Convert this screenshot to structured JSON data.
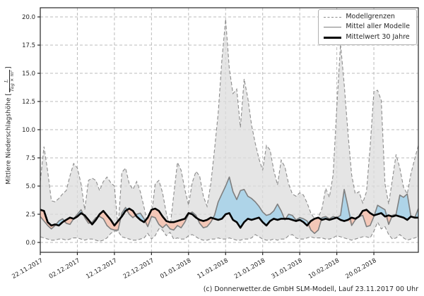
{
  "chart_data": {
    "type": "line",
    "title": "",
    "footer": "(c) Donnerwetter.de GmbH SLM-Modell, Lauf 23.11.2017 00 Uhr",
    "ylabel": "Mittlere Niederschlagshöhe [L/(Tag × m²)]",
    "ylabel_parts": {
      "prefix": "Mittlere Niederschlagshöhe [",
      "fraction_numerator": "L",
      "fraction_denominator": "Tag × m²",
      "suffix": "]"
    },
    "x_unit": "Tage (täglich ab 22.11.2017)",
    "x_total_days": 102,
    "x_tick_days": [
      0,
      10,
      20,
      30,
      40,
      50,
      60,
      70,
      80,
      90
    ],
    "x_tick_labels": [
      "22.11.2017",
      "02.12.2017",
      "12.12.2017",
      "22.12.2017",
      "01.01.2018",
      "11.01.2018",
      "21.01.2018",
      "31.01.2018",
      "10.02.2018",
      "20.02.2018"
    ],
    "y_ticks": [
      0,
      2.5,
      5,
      7.5,
      10,
      12.5,
      15,
      17.5,
      20
    ],
    "y_tick_labels": [
      "0.0",
      "2.5",
      "5.0",
      "7.5",
      "10.0",
      "12.5",
      "15.0",
      "17.5",
      "20.0"
    ],
    "ylim": [
      -0.9,
      20.8
    ],
    "grid": true,
    "legend_position": "upper right",
    "legend": [
      {
        "label": "Modellgrenzen",
        "style": "dashed-gray"
      },
      {
        "label": "Mittel aller Modelle",
        "style": "solid-gray"
      },
      {
        "label": "Mittelwert 30 Jahre",
        "style": "solid-black-thick"
      }
    ],
    "colors": {
      "band_fill": "#dcdcdc",
      "band_edge": "#8c8c8c",
      "above_normal_fill": "#aed4e8",
      "below_normal_fill": "#f4c7b7",
      "mean_line": "#7f7f7f",
      "climate_line": "#000000",
      "grid": "#bbbbbb",
      "axis": "#262626"
    },
    "series": [
      {
        "name": "Modellgrenzen (oberes Band / Maximum)",
        "role": "band-max",
        "values": [
          5.4,
          8.5,
          6.3,
          3.7,
          3.6,
          3.9,
          4.3,
          4.6,
          5.9,
          7.0,
          6.6,
          5.2,
          2.9,
          5.5,
          5.7,
          5.5,
          4.6,
          5.4,
          5.8,
          5.3,
          5.0,
          1.3,
          6.2,
          6.6,
          5.2,
          4.7,
          5.4,
          4.5,
          3.1,
          1.6,
          2.4,
          5.2,
          5.5,
          4.4,
          2.6,
          1.3,
          4.2,
          7.1,
          6.4,
          4.7,
          3.3,
          5.3,
          6.3,
          5.9,
          4.1,
          3.2,
          5.2,
          8.2,
          11.5,
          16.2,
          19.8,
          15.4,
          13.2,
          13.6,
          10.2,
          14.5,
          12.8,
          10.4,
          8.8,
          7.4,
          6.4,
          8.6,
          8.2,
          6.4,
          5.1,
          7.3,
          6.7,
          5.2,
          4.3,
          4.1,
          4.4,
          4.2,
          3.5,
          2.6,
          2.1,
          2.2,
          3.0,
          4.8,
          4.0,
          6.0,
          12.0,
          17.6,
          14.0,
          9.8,
          6.0,
          4.3,
          4.5,
          3.5,
          4.5,
          8.5,
          13.4,
          13.5,
          12.6,
          5.2,
          3.4,
          5.6,
          7.8,
          6.6,
          4.9,
          4.3,
          6.1,
          7.4,
          8.6
        ]
      },
      {
        "name": "Modellgrenzen (unteres Band / Minimum)",
        "role": "band-min",
        "values": [
          0.5,
          0.4,
          0.3,
          0.2,
          0.2,
          0.3,
          0.3,
          0.2,
          0.3,
          0.4,
          0.4,
          0.3,
          0.2,
          0.3,
          0.3,
          0.2,
          0.1,
          0.2,
          0.4,
          0.8,
          1.0,
          1.0,
          0.5,
          0.4,
          0.3,
          0.2,
          0.2,
          0.3,
          0.4,
          0.8,
          0.3,
          0.6,
          1.2,
          1.1,
          0.6,
          0.9,
          0.3,
          0.4,
          0.3,
          0.3,
          0.6,
          0.7,
          0.5,
          0.3,
          0.2,
          0.2,
          0.3,
          0.3,
          0.4,
          0.3,
          0.3,
          0.4,
          0.3,
          0.2,
          0.2,
          0.3,
          0.3,
          0.4,
          0.7,
          0.5,
          0.3,
          0.2,
          0.2,
          0.3,
          0.2,
          0.3,
          0.3,
          0.6,
          0.7,
          0.4,
          0.3,
          0.3,
          0.4,
          0.5,
          0.4,
          0.4,
          0.4,
          0.3,
          0.3,
          0.4,
          0.6,
          0.5,
          0.4,
          0.3,
          0.2,
          0.3,
          0.4,
          0.5,
          0.5,
          0.4,
          1.0,
          1.8,
          1.2,
          1.4,
          0.7,
          0.3,
          0.4,
          0.7,
          0.4,
          0.2,
          0.3,
          0.4,
          0.5
        ]
      },
      {
        "name": "Mittel aller Modelle",
        "role": "mean",
        "values": [
          2.3,
          1.9,
          1.5,
          1.2,
          1.5,
          1.9,
          2.1,
          1.7,
          1.6,
          2.1,
          2.5,
          2.9,
          2.2,
          1.7,
          1.8,
          2.2,
          2.3,
          2.1,
          1.5,
          1.2,
          1.1,
          1.1,
          2.6,
          3.1,
          2.5,
          2.2,
          2.5,
          2.6,
          2.1,
          1.4,
          2.3,
          2.2,
          1.6,
          1.3,
          1.6,
          1.2,
          1.1,
          1.5,
          1.3,
          1.8,
          2.5,
          2.7,
          2.4,
          1.7,
          1.3,
          1.4,
          1.8,
          2.4,
          3.6,
          4.3,
          5.0,
          5.8,
          4.5,
          3.8,
          4.6,
          4.7,
          4.1,
          3.9,
          3.6,
          3.2,
          2.7,
          2.4,
          2.5,
          2.8,
          3.4,
          2.8,
          2.0,
          2.5,
          2.4,
          2.0,
          2.2,
          2.1,
          1.9,
          1.1,
          0.8,
          1.1,
          2.2,
          2.3,
          2.1,
          2.3,
          2.2,
          2.4,
          4.7,
          3.2,
          1.5,
          2.0,
          2.3,
          2.4,
          1.4,
          1.5,
          2.3,
          3.3,
          3.1,
          2.9,
          1.6,
          2.4,
          2.5,
          4.2,
          4.0,
          4.3,
          2.3,
          2.2,
          3.0
        ]
      },
      {
        "name": "Mittelwert 30 Jahre",
        "role": "climate",
        "values": [
          2.9,
          2.8,
          1.8,
          1.5,
          1.6,
          1.5,
          1.8,
          2.0,
          2.2,
          2.1,
          2.3,
          2.6,
          2.4,
          2.0,
          1.6,
          2.0,
          2.5,
          2.8,
          2.4,
          2.0,
          1.5,
          1.9,
          2.3,
          2.8,
          3.0,
          2.8,
          2.3,
          2.0,
          1.8,
          2.2,
          2.9,
          3.0,
          2.8,
          2.3,
          1.9,
          1.8,
          1.8,
          1.9,
          2.0,
          2.1,
          2.6,
          2.5,
          2.2,
          2.0,
          1.9,
          2.0,
          2.2,
          2.1,
          2.0,
          2.1,
          2.5,
          2.6,
          2.0,
          1.8,
          1.3,
          1.8,
          2.1,
          2.0,
          2.1,
          2.2,
          1.8,
          1.5,
          1.9,
          2.1,
          2.0,
          2.1,
          2.1,
          2.1,
          2.0,
          1.9,
          2.0,
          1.8,
          1.5,
          1.9,
          2.1,
          2.2,
          2.0,
          2.1,
          2.0,
          2.1,
          2.2,
          2.0,
          1.9,
          2.0,
          2.2,
          2.1,
          2.3,
          2.8,
          2.9,
          2.6,
          2.4,
          2.5,
          2.6,
          2.3,
          2.4,
          2.3,
          2.4,
          2.3,
          2.2,
          2.0,
          2.3,
          2.2,
          2.2
        ]
      }
    ]
  }
}
